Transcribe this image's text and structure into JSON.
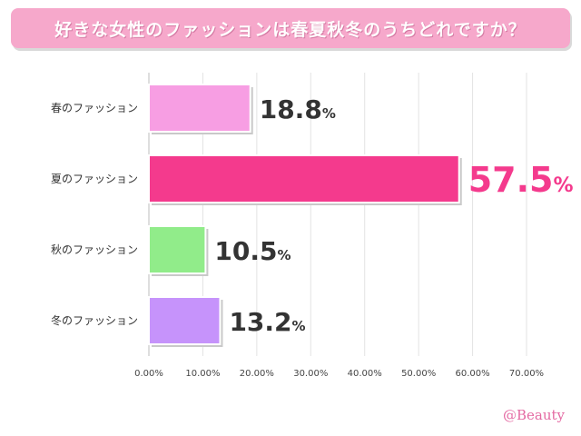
{
  "title": "好きな女性のファッションは春夏秋冬のうちどれですか？",
  "watermark": "@Beauty",
  "chart_data": {
    "type": "bar",
    "orientation": "horizontal",
    "categories": [
      "春のファッション",
      "夏のファッション",
      "秋のファッション",
      "冬のファッション"
    ],
    "values": [
      18.8,
      57.5,
      10.5,
      13.2
    ],
    "value_labels": [
      "18.8",
      "57.5",
      "10.5",
      "13.2"
    ],
    "value_unit": "%",
    "bar_colors": [
      "#f79ee3",
      "#f43a8d",
      "#91ec8a",
      "#c693fb"
    ],
    "value_label_colors": [
      "#333333",
      "#f43a8d",
      "#333333",
      "#333333"
    ],
    "xlim": [
      0,
      70
    ],
    "xticks": [
      "0.00%",
      "10.00%",
      "20.00%",
      "30.00%",
      "40.00%",
      "50.00%",
      "60.00%",
      "70.00%"
    ],
    "grid": true
  }
}
